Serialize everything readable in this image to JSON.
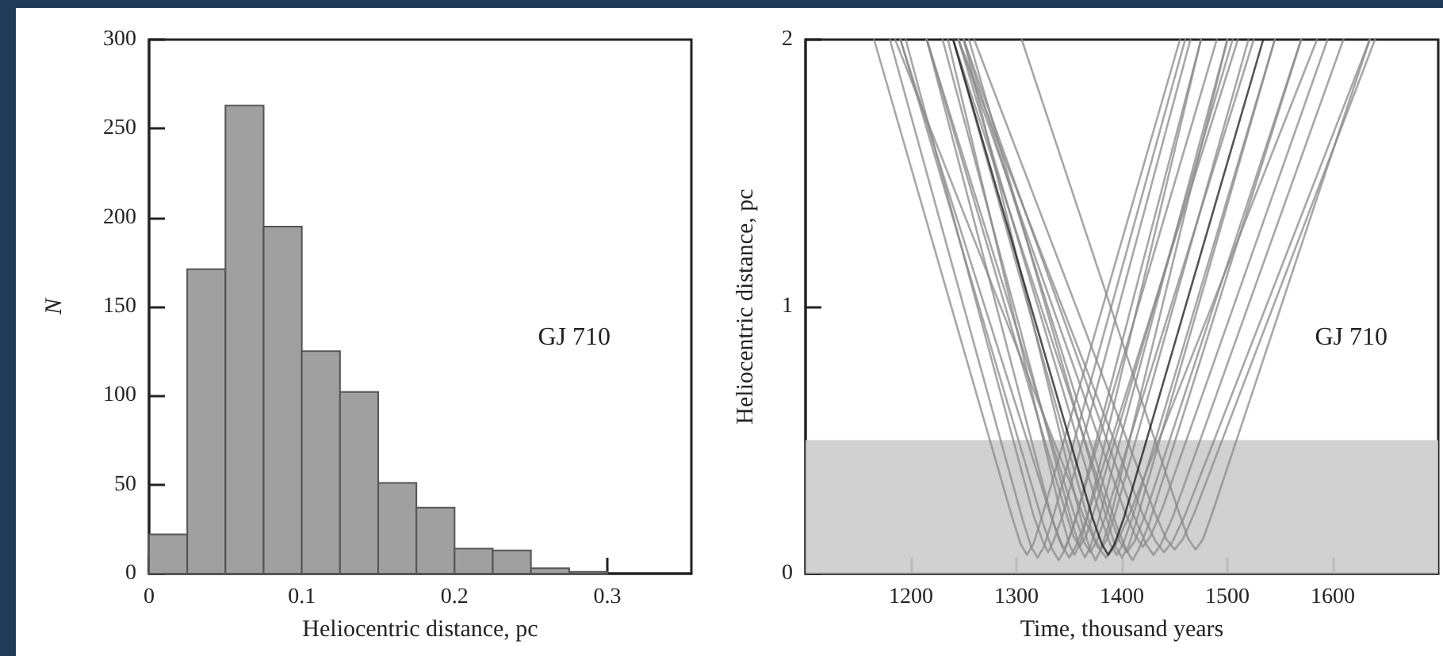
{
  "chart_data": [
    {
      "type": "histogram",
      "xlabel": "Heliocentric distance, pc",
      "ylabel": "N",
      "annotations": [
        "GJ 710"
      ],
      "color": "#a0a0a0",
      "bins": [
        0,
        0.025,
        0.05,
        0.075,
        0.1,
        0.125,
        0.15,
        0.175,
        0.2,
        0.225,
        0.25,
        0.275,
        0.3
      ],
      "values": [
        22,
        171,
        263,
        195,
        125,
        102,
        51,
        37,
        14,
        13,
        3,
        1
      ],
      "xlim": [
        0,
        0.355
      ],
      "xticks": [
        0,
        0.1,
        0.2,
        0.3
      ],
      "ylim": [
        0,
        300
      ],
      "yticks": [
        0,
        50,
        100,
        150,
        200,
        250,
        300
      ],
      "grid": false
    },
    {
      "type": "line",
      "xlabel": "Time, thousand years",
      "ylabel": "Heliocentric distance, pc",
      "annotations": [
        "GJ 710"
      ],
      "xlim": [
        1100,
        1700
      ],
      "xticks": [
        1200,
        1300,
        1400,
        1500,
        1600
      ],
      "ylim": [
        0,
        2
      ],
      "yticks": [
        0,
        1,
        2
      ],
      "grid": false,
      "marker": "none",
      "line_style": "solid",
      "bands": [
        {
          "axis": "y",
          "from": 0,
          "to": 0.5,
          "color": "#cccccc"
        }
      ],
      "series": [
        {
          "color": "#8a8a8a",
          "x": [
            1165,
            1296,
            1304,
            1310,
            1316,
            1324,
            1455
          ],
          "values": [
            2,
            0.21,
            0.11,
            0.07,
            0.11,
            0.21,
            2
          ]
        },
        {
          "color": "#8a8a8a",
          "x": [
            1180,
            1306,
            1314,
            1320,
            1326,
            1334,
            1460
          ],
          "values": [
            2,
            0.2,
            0.1,
            0.06,
            0.1,
            0.2,
            2
          ]
        },
        {
          "color": "#8a8a8a",
          "x": [
            1195,
            1316,
            1325,
            1330,
            1335,
            1344,
            1465
          ],
          "values": [
            2,
            0.22,
            0.12,
            0.08,
            0.12,
            0.22,
            2
          ]
        },
        {
          "color": "#8a8a8a",
          "x": [
            1190,
            1325,
            1334,
            1340,
            1346,
            1355,
            1490
          ],
          "values": [
            2,
            0.19,
            0.09,
            0.05,
            0.09,
            0.19,
            2
          ]
        },
        {
          "color": "#8a8a8a",
          "x": [
            1215,
            1332,
            1340,
            1345,
            1350,
            1358,
            1475
          ],
          "values": [
            2,
            0.23,
            0.13,
            0.09,
            0.13,
            0.23,
            2
          ]
        },
        {
          "color": "#8a8a8a",
          "x": [
            1190,
            1334,
            1344,
            1350,
            1356,
            1366,
            1510
          ],
          "values": [
            2,
            0.2,
            0.1,
            0.06,
            0.1,
            0.2,
            2
          ]
        },
        {
          "color": "#8a8a8a",
          "x": [
            1235,
            1343,
            1350,
            1355,
            1360,
            1367,
            1475
          ],
          "values": [
            2,
            0.21,
            0.11,
            0.07,
            0.11,
            0.21,
            2
          ]
        },
        {
          "color": "#8a8a8a",
          "x": [
            1215,
            1346,
            1354,
            1360,
            1366,
            1374,
            1505
          ],
          "values": [
            2,
            0.24,
            0.14,
            0.1,
            0.14,
            0.24,
            2
          ]
        },
        {
          "color": "#8a8a8a",
          "x": [
            1230,
            1352,
            1360,
            1365,
            1370,
            1378,
            1500
          ],
          "values": [
            2,
            0.2,
            0.1,
            0.06,
            0.1,
            0.2,
            2
          ]
        },
        {
          "color": "#8a8a8a",
          "x": [
            1215,
            1355,
            1364,
            1370,
            1376,
            1385,
            1525
          ],
          "values": [
            2,
            0.22,
            0.12,
            0.08,
            0.12,
            0.22,
            2
          ]
        },
        {
          "color": "#8a8a8a",
          "x": [
            1250,
            1362,
            1370,
            1375,
            1380,
            1388,
            1500
          ],
          "values": [
            2,
            0.19,
            0.09,
            0.05,
            0.09,
            0.19,
            2
          ]
        },
        {
          "color": "#8a8a8a",
          "x": [
            1240,
            1366,
            1374,
            1380,
            1386,
            1394,
            1520
          ],
          "values": [
            2,
            0.23,
            0.13,
            0.09,
            0.13,
            0.23,
            2
          ]
        },
        {
          "color": "#8a8a8a",
          "x": [
            1245,
            1380,
            1389,
            1395,
            1401,
            1410,
            1545
          ],
          "values": [
            2,
            0.21,
            0.11,
            0.07,
            0.11,
            0.21,
            2
          ]
        },
        {
          "color": "#8a8a8a",
          "x": [
            1255,
            1386,
            1394,
            1400,
            1406,
            1414,
            1545
          ],
          "values": [
            2,
            0.2,
            0.1,
            0.06,
            0.1,
            0.2,
            2
          ]
        },
        {
          "color": "#8a8a8a",
          "x": [
            1240,
            1388,
            1398,
            1405,
            1412,
            1422,
            1570
          ],
          "values": [
            2,
            0.22,
            0.12,
            0.08,
            0.12,
            0.22,
            2
          ]
        },
        {
          "color": "#8a8a8a",
          "x": [
            1250,
            1394,
            1404,
            1410,
            1416,
            1426,
            1570
          ],
          "values": [
            2,
            0.19,
            0.09,
            0.05,
            0.09,
            0.19,
            2
          ]
        },
        {
          "color": "#8a8a8a",
          "x": [
            1245,
            1402,
            1413,
            1420,
            1427,
            1438,
            1595
          ],
          "values": [
            2,
            0.24,
            0.14,
            0.1,
            0.14,
            0.24,
            2
          ]
        },
        {
          "color": "#8a8a8a",
          "x": [
            1250,
            1412,
            1423,
            1430,
            1437,
            1448,
            1610
          ],
          "values": [
            2,
            0.21,
            0.11,
            0.07,
            0.11,
            0.21,
            2
          ]
        },
        {
          "color": "#8a8a8a",
          "x": [
            1245,
            1420,
            1432,
            1440,
            1448,
            1460,
            1635
          ],
          "values": [
            2,
            0.22,
            0.12,
            0.08,
            0.12,
            0.22,
            2
          ]
        },
        {
          "color": "#8a8a8a",
          "x": [
            1260,
            1431,
            1442,
            1450,
            1458,
            1469,
            1640
          ],
          "values": [
            2,
            0.23,
            0.13,
            0.09,
            0.13,
            0.23,
            2
          ]
        },
        {
          "color": "#8a8a8a",
          "x": [
            1305,
            1454,
            1463,
            1470,
            1477,
            1486,
            1635
          ],
          "values": [
            2,
            0.23,
            0.13,
            0.09,
            0.13,
            0.23,
            2
          ]
        },
        {
          "color": "#8a8a8a",
          "x": [
            1185,
            1365,
            1377,
            1385,
            1393,
            1405,
            1585
          ],
          "values": [
            2,
            0.2,
            0.1,
            0.06,
            0.1,
            0.2,
            2
          ]
        },
        {
          "color": "#1a1a1a",
          "x": [
            1240,
            1372,
            1381,
            1387,
            1393,
            1402,
            1534
          ],
          "values": [
            2,
            0.21,
            0.11,
            0.07,
            0.11,
            0.21,
            2
          ]
        }
      ]
    }
  ]
}
